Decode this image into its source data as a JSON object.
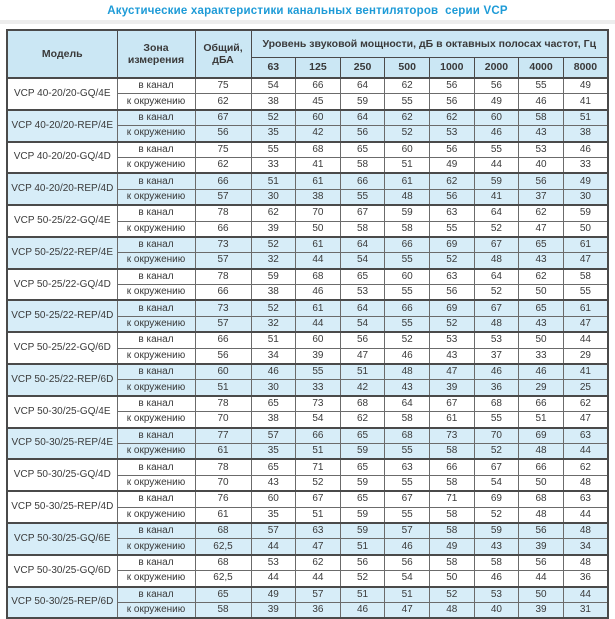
{
  "title": "Акустические характеристики канальных вентиляторов  серии VCP",
  "colors": {
    "title_color": "#1e9bd7",
    "header_bg": "#cbe7f4",
    "row_shaded_bg": "#d7edf8",
    "border_color": "#4a4a4a"
  },
  "table": {
    "headers": {
      "model": "Модель",
      "zone": "Зона измерения",
      "total": "Общий, дБА",
      "group": "Уровень звуковой мощности, дБ в октавных полосах частот, Гц",
      "frequencies": [
        "63",
        "125",
        "250",
        "500",
        "1000",
        "2000",
        "4000",
        "8000"
      ]
    },
    "zone_labels": {
      "duct": "в канал",
      "ambient": "к окружению"
    },
    "rows": [
      {
        "model": "VCP 40-20/20-GQ/4E",
        "shaded": false,
        "duct": {
          "total": "75",
          "levels": [
            54,
            66,
            64,
            62,
            56,
            56,
            55,
            49
          ]
        },
        "ambient": {
          "total": "62",
          "levels": [
            38,
            45,
            59,
            55,
            56,
            49,
            46,
            41
          ]
        }
      },
      {
        "model": "VCP 40-20/20-REP/4E",
        "shaded": true,
        "duct": {
          "total": "67",
          "levels": [
            52,
            60,
            64,
            62,
            62,
            60,
            58,
            51
          ]
        },
        "ambient": {
          "total": "56",
          "levels": [
            35,
            42,
            56,
            52,
            53,
            46,
            43,
            38
          ]
        }
      },
      {
        "model": "VCP 40-20/20-GQ/4D",
        "shaded": false,
        "duct": {
          "total": "75",
          "levels": [
            55,
            68,
            65,
            60,
            56,
            55,
            53,
            46
          ]
        },
        "ambient": {
          "total": "62",
          "levels": [
            33,
            41,
            58,
            51,
            49,
            44,
            40,
            33
          ]
        }
      },
      {
        "model": "VCP 40-20/20-REP/4D",
        "shaded": true,
        "duct": {
          "total": "66",
          "levels": [
            51,
            61,
            66,
            61,
            62,
            59,
            56,
            49
          ]
        },
        "ambient": {
          "total": "57",
          "levels": [
            30,
            38,
            55,
            48,
            56,
            41,
            37,
            30
          ]
        }
      },
      {
        "model": "VCP 50-25/22-GQ/4E",
        "shaded": false,
        "duct": {
          "total": "78",
          "levels": [
            62,
            70,
            67,
            59,
            63,
            64,
            62,
            59
          ]
        },
        "ambient": {
          "total": "66",
          "levels": [
            39,
            50,
            58,
            58,
            55,
            52,
            47,
            50
          ]
        }
      },
      {
        "model": "VCP 50-25/22-REP/4E",
        "shaded": true,
        "duct": {
          "total": "73",
          "levels": [
            52,
            61,
            64,
            66,
            69,
            67,
            65,
            61
          ]
        },
        "ambient": {
          "total": "57",
          "levels": [
            32,
            44,
            54,
            55,
            52,
            48,
            43,
            47
          ]
        }
      },
      {
        "model": "VCP 50-25/22-GQ/4D",
        "shaded": false,
        "duct": {
          "total": "78",
          "levels": [
            59,
            68,
            65,
            60,
            63,
            64,
            62,
            58
          ]
        },
        "ambient": {
          "total": "66",
          "levels": [
            38,
            46,
            53,
            55,
            56,
            52,
            50,
            55
          ]
        }
      },
      {
        "model": "VCP 50-25/22-REP/4D",
        "shaded": true,
        "duct": {
          "total": "73",
          "levels": [
            52,
            61,
            64,
            66,
            69,
            67,
            65,
            61
          ]
        },
        "ambient": {
          "total": "57",
          "levels": [
            32,
            44,
            54,
            55,
            52,
            48,
            43,
            47
          ]
        }
      },
      {
        "model": "VCP 50-25/22-GQ/6D",
        "shaded": false,
        "duct": {
          "total": "66",
          "levels": [
            51,
            60,
            56,
            52,
            53,
            53,
            50,
            44
          ]
        },
        "ambient": {
          "total": "56",
          "levels": [
            34,
            39,
            47,
            46,
            43,
            37,
            33,
            29
          ]
        }
      },
      {
        "model": "VCP 50-25/22-REP/6D",
        "shaded": true,
        "duct": {
          "total": "60",
          "levels": [
            46,
            55,
            51,
            48,
            47,
            46,
            46,
            41
          ]
        },
        "ambient": {
          "total": "51",
          "levels": [
            30,
            33,
            42,
            43,
            39,
            36,
            29,
            25
          ]
        }
      },
      {
        "model": "VCP 50-30/25-GQ/4E",
        "shaded": false,
        "duct": {
          "total": "78",
          "levels": [
            65,
            73,
            68,
            64,
            67,
            68,
            66,
            62
          ]
        },
        "ambient": {
          "total": "70",
          "levels": [
            38,
            54,
            62,
            58,
            61,
            55,
            51,
            47
          ]
        }
      },
      {
        "model": "VCP 50-30/25-REP/4E",
        "shaded": true,
        "duct": {
          "total": "77",
          "levels": [
            57,
            66,
            65,
            68,
            73,
            70,
            69,
            63
          ]
        },
        "ambient": {
          "total": "61",
          "levels": [
            35,
            51,
            59,
            55,
            58,
            52,
            48,
            44
          ]
        }
      },
      {
        "model": "VCP 50-30/25-GQ/4D",
        "shaded": false,
        "duct": {
          "total": "78",
          "levels": [
            65,
            71,
            65,
            63,
            66,
            67,
            66,
            62
          ]
        },
        "ambient": {
          "total": "70",
          "levels": [
            43,
            52,
            59,
            55,
            58,
            54,
            50,
            48
          ]
        }
      },
      {
        "model": "VCP 50-30/25-REP/4D",
        "shaded": false,
        "duct": {
          "total": "76",
          "levels": [
            60,
            67,
            65,
            67,
            71,
            69,
            68,
            63
          ]
        },
        "ambient": {
          "total": "61",
          "levels": [
            35,
            51,
            59,
            55,
            58,
            52,
            48,
            44
          ]
        }
      },
      {
        "model": "VCP 50-30/25-GQ/6E",
        "shaded": true,
        "duct": {
          "total": "68",
          "levels": [
            57,
            63,
            59,
            57,
            58,
            59,
            56,
            48
          ]
        },
        "ambient": {
          "total": "62,5",
          "levels": [
            44,
            47,
            51,
            46,
            49,
            43,
            39,
            34
          ]
        }
      },
      {
        "model": "VCP 50-30/25-GQ/6D",
        "shaded": false,
        "duct": {
          "total": "68",
          "levels": [
            53,
            62,
            56,
            56,
            58,
            58,
            56,
            48
          ]
        },
        "ambient": {
          "total": "62,5",
          "levels": [
            44,
            44,
            52,
            54,
            50,
            46,
            44,
            36
          ]
        }
      },
      {
        "model": "VCP 50-30/25-REP/6D",
        "shaded": true,
        "duct": {
          "total": "65",
          "levels": [
            49,
            57,
            51,
            51,
            52,
            53,
            50,
            44
          ]
        },
        "ambient": {
          "total": "58",
          "levels": [
            39,
            36,
            46,
            47,
            48,
            40,
            39,
            31
          ]
        }
      }
    ]
  }
}
